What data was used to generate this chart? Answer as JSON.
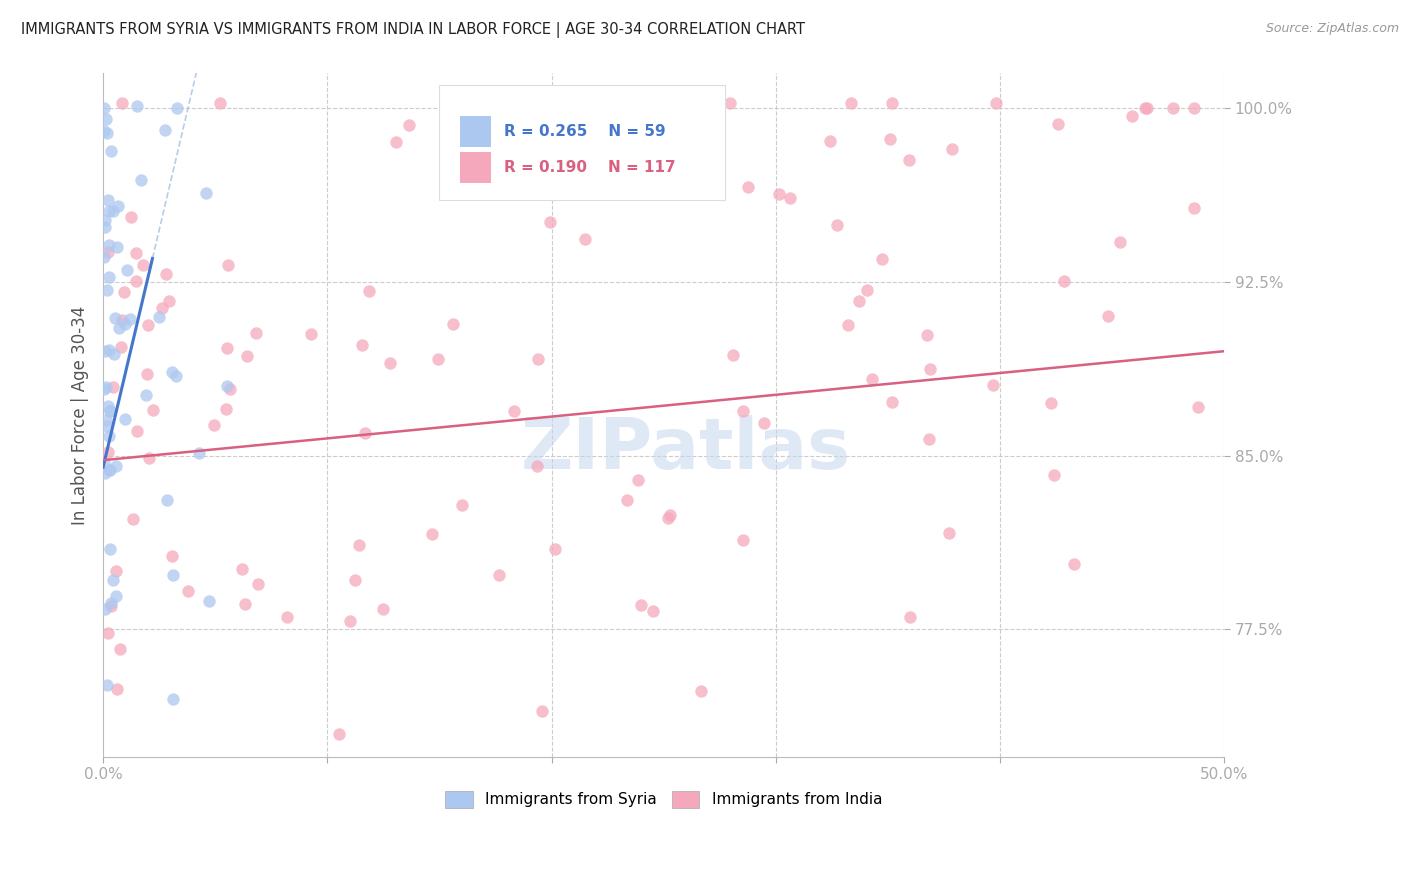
{
  "title": "IMMIGRANTS FROM SYRIA VS IMMIGRANTS FROM INDIA IN LABOR FORCE | AGE 30-34 CORRELATION CHART",
  "source": "Source: ZipAtlas.com",
  "ylabel": "In Labor Force | Age 30-34",
  "xlim": [
    0.0,
    0.5
  ],
  "ylim": [
    0.72,
    1.015
  ],
  "xticks": [
    0.0,
    0.1,
    0.2,
    0.3,
    0.4,
    0.5
  ],
  "xticklabels": [
    "0.0%",
    "",
    "",
    "",
    "",
    "50.0%"
  ],
  "yticks": [
    0.775,
    0.85,
    0.925,
    1.0
  ],
  "yticklabels": [
    "77.5%",
    "85.0%",
    "92.5%",
    "100.0%"
  ],
  "syria_color": "#adc8f0",
  "india_color": "#f5a8bc",
  "trend_syria_color": "#4477cc",
  "trend_india_color": "#d96080",
  "dash_color": "#9ab8e0",
  "watermark_color": "#c5d8ed",
  "legend_syria_R": "0.265",
  "legend_syria_N": "59",
  "legend_india_R": "0.190",
  "legend_india_N": "117",
  "background_color": "#ffffff",
  "grid_color": "#cccccc",
  "axis_label_color": "#4477cc",
  "title_color": "#222222"
}
